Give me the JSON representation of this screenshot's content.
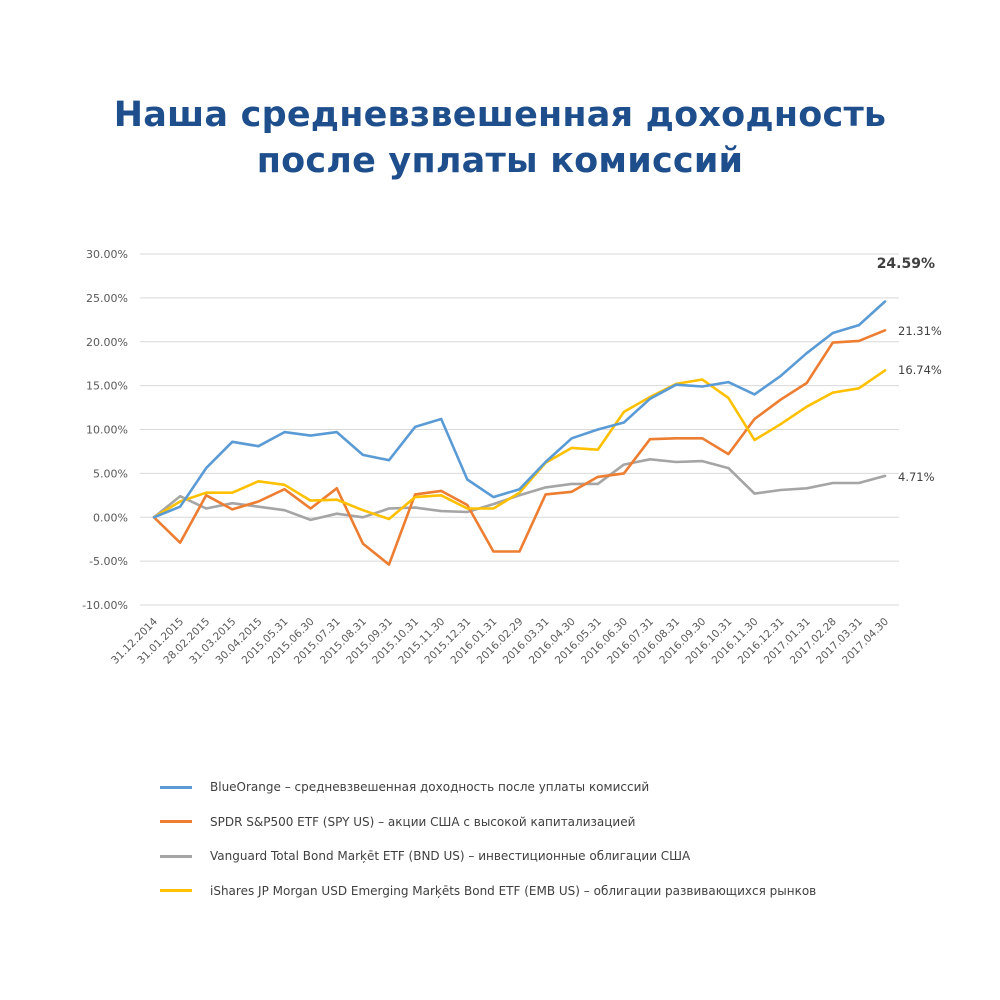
{
  "title": {
    "line1": "Наша средневзвешенная доходность",
    "line2": "после уплаты комиссий"
  },
  "colors": {
    "title": "#1f4e8c",
    "gridline": "#d9d9d9",
    "tick_text": "#595959"
  },
  "legend": {
    "items": [
      {
        "label": "BlueOrange – средневзвешенная доходность после уплаты комиссий",
        "color": "#5b9bd5"
      },
      {
        "label": "SPDR S&P500 ETF (SPY US) – акции США с высокой капитализацией",
        "color": "#ed7d31"
      },
      {
        "label": "Vanguard Total Bond Marķēt ETF (BND US) – инвестиционные облигации США",
        "color": "#a5a5a5"
      },
      {
        "label": "iShares JP Morgan USD Emerging Marķēts Bond ETF (EMB US) – облигации развивающихся рынков",
        "color": "#ffc000"
      }
    ]
  },
  "chart_data": {
    "type": "line",
    "title": "Наша средневзвешенная доходность после уплаты комиссий",
    "xlabel": "",
    "ylabel": "",
    "ylim": [
      -10,
      30
    ],
    "yticks": [
      "30.00%",
      "25.00%",
      "20.00%",
      "15.00%",
      "10.00%",
      "5.00%",
      "0.00%",
      "-5.00%",
      "-10.00%"
    ],
    "ytick_values": [
      30,
      25,
      20,
      15,
      10,
      5,
      0,
      -5,
      -10
    ],
    "grid": true,
    "legend_position": "bottom",
    "categories": [
      "31.12.2014",
      "31.01.2015",
      "28.02.2015",
      "31.03.2015",
      "30.04.2015",
      "2015.05.31",
      "2015.06.30",
      "2015.07.31",
      "2015.08.31",
      "2015.09.31",
      "2015.10.31",
      "2015.11.30",
      "2015.12.31",
      "2016.01.31",
      "2016.02.29",
      "2016.03.31",
      "2016.04.30",
      "2016.05.31",
      "2016.06.30",
      "2016.07.31",
      "2016.08.31",
      "2016.09.30",
      "2016.10.31",
      "2016.11.30",
      "2016.12.31",
      "2017.01.31",
      "2017.02.28",
      "2017.03.31",
      "2017.04.30"
    ],
    "series": [
      {
        "name": "BlueOrange – средневзвешенная доходность после уплаты комиссий",
        "color": "#5b9bd5",
        "values": [
          0,
          1.2,
          5.6,
          8.6,
          8.1,
          9.7,
          9.3,
          9.7,
          7.1,
          6.5,
          10.3,
          11.2,
          4.3,
          2.3,
          3.2,
          6.3,
          9.0,
          10.0,
          10.8,
          13.5,
          15.1,
          14.9,
          15.4,
          14.0,
          16.1,
          18.7,
          21.0,
          21.9,
          24.59
        ],
        "end_label": "24.59%",
        "end_label_bold": true
      },
      {
        "name": "SPDR S&P500 ETF (SPY US) – акции США с высокой капитализацией",
        "color": "#ed7d31",
        "values": [
          0,
          -2.9,
          2.5,
          0.9,
          1.8,
          3.2,
          1.0,
          3.3,
          -3.0,
          -5.4,
          2.6,
          3.0,
          1.4,
          -3.9,
          -3.9,
          2.6,
          2.9,
          4.6,
          5.0,
          8.9,
          9.0,
          9.0,
          7.2,
          11.2,
          13.4,
          15.3,
          19.9,
          20.1,
          21.31
        ],
        "end_label": "21.31%",
        "end_label_bold": false
      },
      {
        "name": "Vanguard Total Bond Marķēt ETF (BND US) – инвестиционные облигации США",
        "color": "#a5a5a5",
        "values": [
          0,
          2.4,
          1.0,
          1.6,
          1.2,
          0.8,
          -0.3,
          0.4,
          0.0,
          1.0,
          1.1,
          0.7,
          0.6,
          1.5,
          2.5,
          3.4,
          3.8,
          3.8,
          6.0,
          6.6,
          6.3,
          6.4,
          5.6,
          2.7,
          3.1,
          3.3,
          3.9,
          3.9,
          4.71
        ],
        "end_label": "4.71%",
        "end_label_bold": false
      },
      {
        "name": "iShares JP Morgan USD Emerging Marķēts Bond ETF (EMB US) – облигации развивающихся рынков",
        "color": "#ffc000",
        "values": [
          0,
          1.8,
          2.8,
          2.8,
          4.1,
          3.7,
          1.9,
          2.0,
          0.8,
          -0.2,
          2.3,
          2.5,
          1.0,
          1.0,
          2.8,
          6.2,
          7.9,
          7.7,
          12.0,
          13.7,
          15.2,
          15.7,
          13.6,
          8.8,
          10.6,
          12.6,
          14.2,
          14.7,
          16.74
        ],
        "end_label": "16.74%",
        "end_label_bold": false
      }
    ]
  }
}
